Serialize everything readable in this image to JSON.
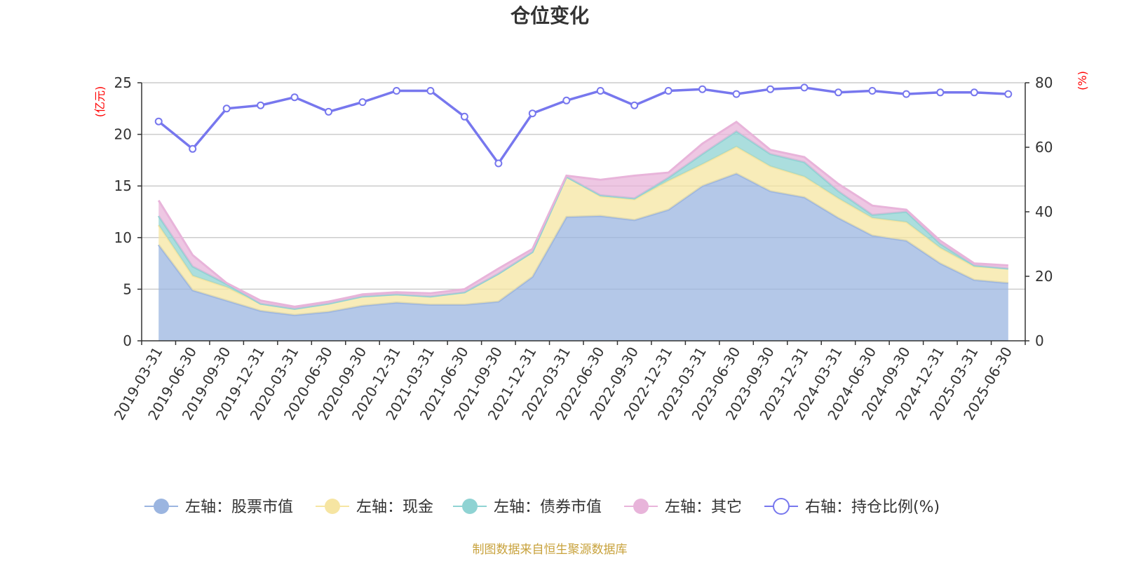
{
  "title": "仓位变化",
  "source": "制图数据来自恒生聚源数据库",
  "colors": {
    "stock": "#9bb5e0",
    "cash": "#f6e5a2",
    "bond": "#8fd3d3",
    "other": "#e8b4da",
    "ratio": "#7777ee",
    "unit": "#ff0000",
    "grid": "#cccccc",
    "source": "#c8a23c"
  },
  "chart_data": {
    "type": "area",
    "x": [
      "2019-03-31",
      "2019-06-30",
      "2019-09-30",
      "2019-12-31",
      "2020-03-31",
      "2020-06-30",
      "2020-09-30",
      "2020-12-31",
      "2021-03-31",
      "2021-06-30",
      "2021-09-30",
      "2021-12-31",
      "2022-03-31",
      "2022-06-30",
      "2022-09-30",
      "2022-12-31",
      "2023-03-31",
      "2023-06-30",
      "2023-09-30",
      "2023-12-31",
      "2024-03-31",
      "2024-06-30",
      "2024-09-30",
      "2024-12-31",
      "2025-03-31",
      "2025-06-30"
    ],
    "y_left": {
      "unit": "(亿元)",
      "ylim": [
        0,
        25
      ],
      "ticks": [
        0,
        5,
        10,
        15,
        20,
        25
      ]
    },
    "y_right": {
      "unit": "(%)",
      "ylim": [
        0,
        80
      ],
      "ticks": [
        0,
        20,
        40,
        60,
        80
      ]
    },
    "grid": true,
    "legend_position": "bottom",
    "series": [
      {
        "name": "左轴：股票市值",
        "axis": "left",
        "stacked": true,
        "color_key": "stock",
        "values": [
          9.3,
          4.9,
          3.9,
          2.9,
          2.5,
          2.8,
          3.4,
          3.7,
          3.5,
          3.5,
          3.8,
          6.2,
          12.0,
          12.1,
          11.7,
          12.7,
          15.0,
          16.2,
          14.5,
          13.9,
          11.9,
          10.2,
          9.7,
          7.5,
          5.9,
          5.6
        ]
      },
      {
        "name": "左轴：现金",
        "axis": "left",
        "stacked": true,
        "color_key": "cash",
        "values": [
          1.9,
          1.4,
          1.3,
          0.7,
          0.6,
          0.8,
          0.9,
          0.8,
          0.8,
          1.2,
          2.7,
          2.4,
          3.9,
          1.9,
          2.0,
          2.8,
          2.1,
          2.6,
          2.4,
          2.0,
          1.9,
          1.7,
          1.8,
          1.5,
          1.3,
          1.4
        ]
      },
      {
        "name": "左轴：债券市值",
        "axis": "left",
        "stacked": true,
        "color_key": "bond",
        "values": [
          0.9,
          0.9,
          0.3,
          0.0,
          0.0,
          0.0,
          0.0,
          0.0,
          0.0,
          0.0,
          0.0,
          0.0,
          0.0,
          0.1,
          0.1,
          0.3,
          1.0,
          1.5,
          1.2,
          1.4,
          0.7,
          0.3,
          1.0,
          0.4,
          0.1,
          0.0
        ]
      },
      {
        "name": "左轴：其它",
        "axis": "left",
        "stacked": true,
        "color_key": "other",
        "values": [
          1.5,
          1.1,
          0.1,
          0.3,
          0.2,
          0.2,
          0.2,
          0.2,
          0.3,
          0.3,
          0.5,
          0.3,
          0.1,
          1.5,
          2.2,
          0.5,
          1.0,
          0.9,
          0.4,
          0.5,
          0.7,
          0.9,
          0.2,
          0.3,
          0.2,
          0.3
        ]
      },
      {
        "name": "右轴：持仓比例(%)",
        "axis": "right",
        "type": "line",
        "color_key": "ratio",
        "values": [
          68,
          59.5,
          72,
          73,
          75.5,
          71,
          74,
          77.5,
          77.5,
          69.5,
          55,
          70.5,
          74.5,
          77.5,
          73,
          77.5,
          78,
          76.5,
          78,
          78.5,
          77,
          77.5,
          76.5,
          77,
          77,
          76.5
        ]
      }
    ]
  }
}
